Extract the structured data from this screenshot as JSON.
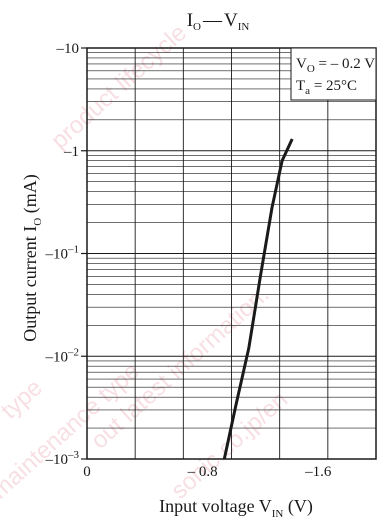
{
  "chart_data": {
    "type": "line",
    "title": {
      "main": "I",
      "main_sub": "O",
      "dash": "—",
      "vs": "V",
      "vs_sub": "IN"
    },
    "xlabel": {
      "text": "Input voltage  V",
      "sub": "IN",
      "unit": "  (V)"
    },
    "ylabel": {
      "text": "Output current  I",
      "sub": "O",
      "unit": "  (mA)"
    },
    "x_ticks": [
      {
        "value": 0,
        "label": "0"
      },
      {
        "value": -0.8,
        "label": "– 0.8"
      },
      {
        "value": -1.6,
        "label": "–1.6"
      }
    ],
    "x_range": [
      0,
      -2.0
    ],
    "y_scale": "log",
    "y_range": [
      -0.001,
      -10
    ],
    "y_ticks": [
      {
        "value": -10,
        "base": "–10",
        "exp": ""
      },
      {
        "value": -1,
        "base": "–1",
        "exp": ""
      },
      {
        "value": -0.1,
        "base": "–10",
        "exp": "–1"
      },
      {
        "value": -0.01,
        "base": "–10",
        "exp": "–2"
      },
      {
        "value": -0.001,
        "base": "–10",
        "exp": "–3"
      }
    ],
    "legend": {
      "line1": {
        "text": "V",
        "sub": "O",
        "rest": " = – 0.2 V"
      },
      "line2": {
        "text": "T",
        "sub": "a",
        "rest": " = 25°C"
      }
    },
    "grid": true,
    "series": [
      {
        "x": [
          -0.95,
          -1.03,
          -1.12,
          -1.2,
          -1.28,
          -1.35,
          -1.42
        ],
        "y": [
          -0.001,
          -0.0033,
          -0.012,
          -0.06,
          -0.28,
          -0.8,
          -1.3
        ]
      }
    ]
  },
  "watermark": [
    "product lifecycle",
    "out latest information.",
    "type",
    "maintenance type",
    "sonic.co.jp/en"
  ]
}
